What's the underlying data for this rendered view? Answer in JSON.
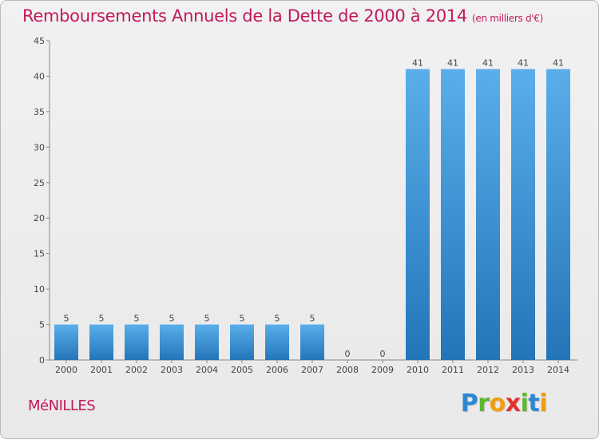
{
  "chart_data": {
    "type": "bar",
    "title": "Remboursements Annuels de la Dette de 2000 à 2014",
    "subtitle": "(en milliers d'€)",
    "categories": [
      "2000",
      "2001",
      "2002",
      "2003",
      "2004",
      "2005",
      "2006",
      "2007",
      "2008",
      "2009",
      "2010",
      "2011",
      "2012",
      "2013",
      "2014"
    ],
    "values": [
      5,
      5,
      5,
      5,
      5,
      5,
      5,
      5,
      0,
      0,
      41,
      41,
      41,
      41,
      41
    ],
    "ylim": [
      0,
      45
    ],
    "yticks": [
      0,
      5,
      10,
      15,
      20,
      25,
      30,
      35,
      40,
      45
    ],
    "xlabel": "",
    "ylabel": "",
    "grid": false,
    "bar_color": "#3b8fd6"
  },
  "place_name": "MéNILLES",
  "brand": {
    "letters": [
      "P",
      "r",
      "o",
      "x",
      "i",
      "t",
      "i"
    ],
    "colors": [
      "#2f87d1",
      "#5cb82e",
      "#f39c12",
      "#e2322e",
      "#5cb82e",
      "#2f87d1",
      "#f39c12"
    ]
  }
}
